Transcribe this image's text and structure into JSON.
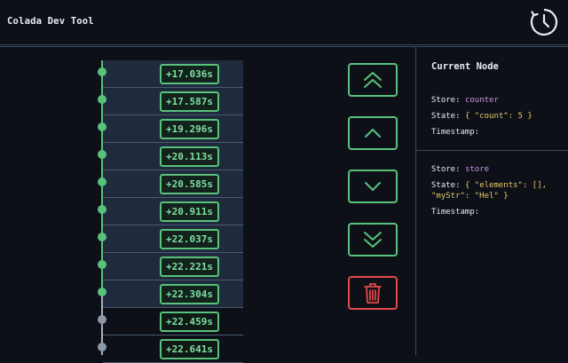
{
  "header": {
    "title": "Colada Dev Tool",
    "clock_icon": "clock-icon"
  },
  "timeline": {
    "entries": [
      {
        "time": "+17.036s",
        "active": true
      },
      {
        "time": "+17.587s",
        "active": true
      },
      {
        "time": "+19.296s",
        "active": true
      },
      {
        "time": "+20.113s",
        "active": true
      },
      {
        "time": "+20.585s",
        "active": true
      },
      {
        "time": "+20.911s",
        "active": true
      },
      {
        "time": "+22.037s",
        "active": true
      },
      {
        "time": "+22.221s",
        "active": true
      },
      {
        "time": "+22.304s",
        "active": true
      },
      {
        "time": "+22.459s",
        "active": false
      },
      {
        "time": "+22.641s",
        "active": false
      }
    ]
  },
  "controls": {
    "first_icon": "double-chevron-up-icon",
    "prev_icon": "chevron-up-icon",
    "next_icon": "chevron-down-icon",
    "last_icon": "double-chevron-down-icon",
    "clear_icon": "trash-icon"
  },
  "panel": {
    "title": "Current Node",
    "nodes": [
      {
        "store_label": "Store:",
        "store": "counter",
        "state_label": "State:",
        "state": "{ \"count\": 5 }",
        "timestamp_label": "Timestamp:"
      },
      {
        "store_label": "Store:",
        "store": "store",
        "state_label": "State:",
        "state": "{ \"elements\": [], \"myStr\": \"Hel\" }",
        "timestamp_label": "Timestamp:"
      }
    ]
  },
  "colors": {
    "accent": "#58c27d",
    "danger": "#e5484d",
    "background": "#0d1117",
    "store": "#c792ea",
    "state": "#e6c86b"
  }
}
